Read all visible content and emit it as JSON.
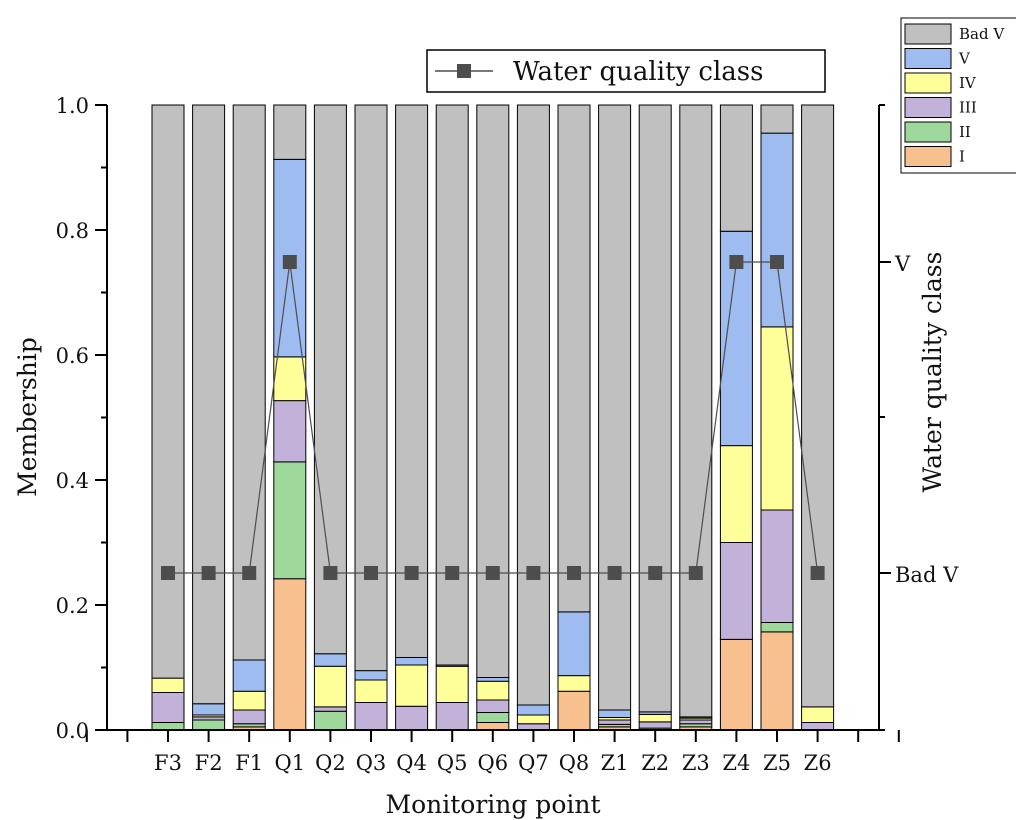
{
  "chart_data": {
    "type": "bar",
    "stacked": true,
    "xlabel": "Monitoring point",
    "ylabel": "Membership",
    "y2label": "Water quality class",
    "ylim": [
      0,
      1
    ],
    "yticks": [
      "0.0",
      "0.2",
      "0.4",
      "0.6",
      "0.8",
      "1.0"
    ],
    "y2ticks": [
      "Bad V",
      "V"
    ],
    "categories": [
      "F3",
      "F2",
      "F1",
      "Q1",
      "Q2",
      "Q3",
      "Q4",
      "Q5",
      "Q6",
      "Q7",
      "Q8",
      "Z1",
      "Z2",
      "Z3",
      "Z4",
      "Z5",
      "Z6"
    ],
    "series": [
      {
        "name": "I",
        "color": "#F9C08F",
        "values": [
          0.0,
          0.0,
          0.005,
          0.242,
          0.0,
          0.0,
          0.0,
          0.0,
          0.012,
          0.0,
          0.062,
          0.005,
          0.0,
          0.005,
          0.145,
          0.157,
          0.0
        ]
      },
      {
        "name": "II",
        "color": "#9ED89B",
        "values": [
          0.012,
          0.016,
          0.005,
          0.187,
          0.03,
          0.0,
          0.0,
          0.0,
          0.016,
          0.0,
          0.0,
          0.004,
          0.003,
          0.005,
          0.0,
          0.015,
          0.0
        ]
      },
      {
        "name": "III",
        "color": "#C2B1D8",
        "values": [
          0.048,
          0.005,
          0.022,
          0.098,
          0.007,
          0.044,
          0.038,
          0.044,
          0.02,
          0.01,
          0.0,
          0.007,
          0.01,
          0.006,
          0.155,
          0.18,
          0.012
        ]
      },
      {
        "name": "IV",
        "color": "#FFFF99",
        "values": [
          0.023,
          0.003,
          0.03,
          0.07,
          0.065,
          0.036,
          0.066,
          0.058,
          0.03,
          0.014,
          0.025,
          0.004,
          0.012,
          0.003,
          0.155,
          0.293,
          0.025
        ]
      },
      {
        "name": "V",
        "color": "#9FBCF1",
        "values": [
          0.0,
          0.018,
          0.05,
          0.316,
          0.02,
          0.015,
          0.012,
          0.002,
          0.006,
          0.016,
          0.102,
          0.012,
          0.004,
          0.002,
          0.343,
          0.31,
          0.0
        ]
      },
      {
        "name": "Bad V",
        "color": "#C0C0C0",
        "values": [
          0.917,
          0.958,
          0.888,
          0.087,
          0.878,
          0.905,
          0.884,
          0.896,
          0.916,
          0.96,
          0.811,
          0.968,
          0.971,
          0.979,
          0.202,
          0.045,
          0.963
        ]
      }
    ],
    "line_series": {
      "name": "Water quality class",
      "color": "#4D4D4D",
      "values": [
        "Bad V",
        "Bad V",
        "Bad V",
        "V",
        "Bad V",
        "Bad V",
        "Bad V",
        "Bad V",
        "Bad V",
        "Bad V",
        "Bad V",
        "Bad V",
        "Bad V",
        "Bad V",
        "V",
        "V",
        "Bad V"
      ]
    },
    "legend_position": "top-right"
  }
}
